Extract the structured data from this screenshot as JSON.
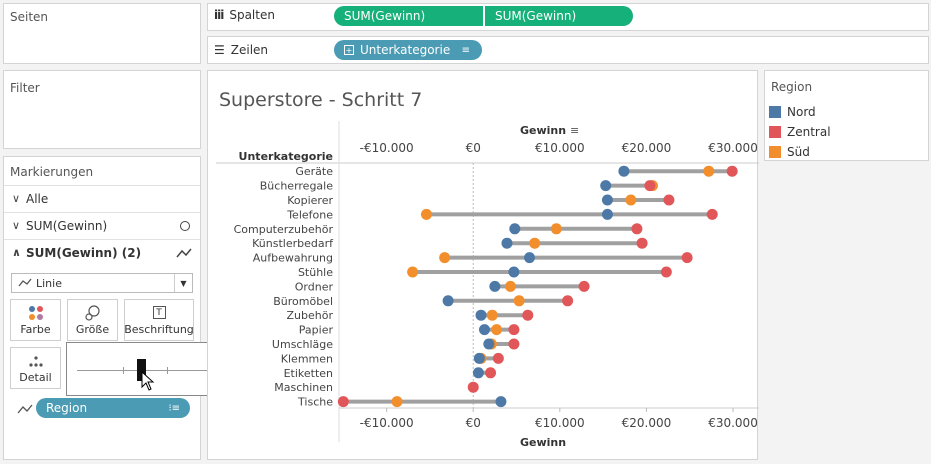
{
  "panels": {
    "pages": "Seiten",
    "filters": "Filter",
    "marks": "Markierungen"
  },
  "shelves": {
    "columns_label": "Spalten",
    "columns_pills": [
      "SUM(Gewinn)",
      "SUM(Gewinn)"
    ],
    "rows_label": "Zeilen",
    "rows_pill": "Unterkategorie"
  },
  "marks_card": {
    "all": "Alle",
    "sum1": "SUM(Gewinn)",
    "sum2": "SUM(Gewinn) (2)",
    "mark_type": "Linie",
    "buttons": {
      "color": "Farbe",
      "size": "Größe",
      "label": "Beschriftung",
      "detail": "Detail"
    },
    "detail_pill": "Region"
  },
  "legend": {
    "title": "Region",
    "items": [
      {
        "name": "Nord",
        "color": "#4e79a7"
      },
      {
        "name": "Zentral",
        "color": "#e15759"
      },
      {
        "name": "Süd",
        "color": "#f28e2b"
      }
    ]
  },
  "chart_data": {
    "type": "scatter",
    "title": "Superstore - Schritt 7",
    "row_header": "Unterkategorie",
    "xlabel": "Gewinn",
    "xlim": [
      -15500,
      33000
    ],
    "x_ticks": [
      -10000,
      0,
      10000,
      20000,
      30000
    ],
    "x_tick_labels": [
      "-€10.000",
      "€0",
      "€10.000",
      "€20.000",
      "€30.000"
    ],
    "categories": [
      "Geräte",
      "Bücherregale",
      "Kopierer",
      "Telefone",
      "Computerzubehör",
      "Künstlerbedarf",
      "Aufbewahrung",
      "Stühle",
      "Ordner",
      "Büromöbel",
      "Zubehör",
      "Papier",
      "Umschläge",
      "Klemmen",
      "Etiketten",
      "Maschinen",
      "Tische"
    ],
    "series": [
      {
        "name": "Nord",
        "color": "#4e79a7",
        "values": [
          17400,
          15300,
          15500,
          15500,
          4800,
          3900,
          6500,
          4700,
          2500,
          -2900,
          900,
          1300,
          1800,
          700,
          600,
          null,
          3200
        ]
      },
      {
        "name": "Zentral",
        "color": "#e15759",
        "values": [
          29900,
          20400,
          22600,
          27600,
          18900,
          19500,
          24700,
          22300,
          12800,
          10900,
          6300,
          4700,
          4700,
          2900,
          2000,
          0,
          -15000
        ]
      },
      {
        "name": "Süd",
        "color": "#f28e2b",
        "values": [
          27200,
          20700,
          18200,
          -5400,
          9600,
          7100,
          -3300,
          -7000,
          4300,
          5300,
          2200,
          2700,
          2100,
          900,
          null,
          null,
          -8800
        ]
      }
    ],
    "range_lines": true
  }
}
